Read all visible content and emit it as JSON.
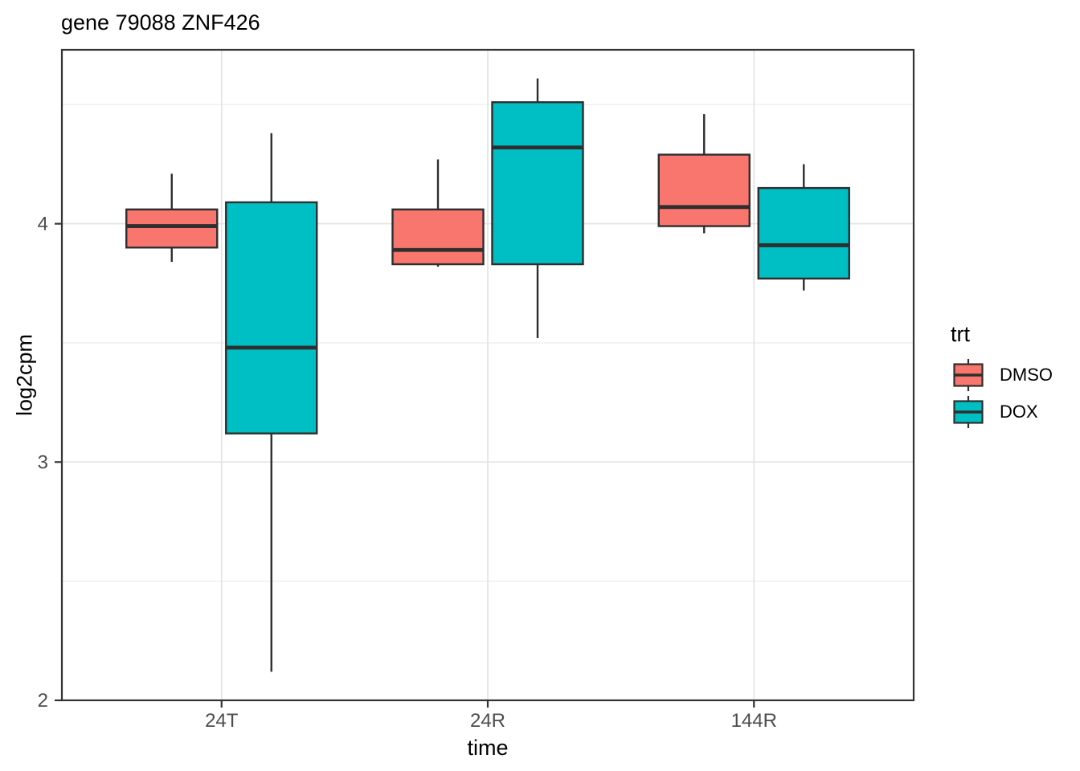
{
  "title": "gene 79088 ZNF426",
  "chart_data": {
    "type": "boxplot",
    "title": "gene 79088 ZNF426",
    "xlabel": "time",
    "ylabel": "log2cpm",
    "categories": [
      "24T",
      "24R",
      "144R"
    ],
    "y_ticks": [
      2,
      3,
      4
    ],
    "y_minor_ticks": [
      2.5,
      3.5,
      4.5
    ],
    "ylim": [
      2,
      4.73
    ],
    "grid": true,
    "legend_position": "right",
    "legend_title": "trt",
    "series": [
      {
        "name": "DMSO",
        "color": "#F8766D",
        "boxes": [
          {
            "category": "24T",
            "whisker_low": 3.84,
            "q1": 3.9,
            "median": 3.99,
            "q3": 4.06,
            "whisker_high": 4.21
          },
          {
            "category": "24R",
            "whisker_low": 3.82,
            "q1": 3.83,
            "median": 3.89,
            "q3": 4.06,
            "whisker_high": 4.27
          },
          {
            "category": "144R",
            "whisker_low": 3.96,
            "q1": 3.99,
            "median": 4.07,
            "q3": 4.29,
            "whisker_high": 4.46
          }
        ]
      },
      {
        "name": "DOX",
        "color": "#00BFC4",
        "boxes": [
          {
            "category": "24T",
            "whisker_low": 2.12,
            "q1": 3.12,
            "median": 3.48,
            "q3": 4.09,
            "whisker_high": 4.38
          },
          {
            "category": "24R",
            "whisker_low": 3.52,
            "q1": 3.83,
            "median": 4.32,
            "q3": 4.51,
            "whisker_high": 4.61
          },
          {
            "category": "144R",
            "whisker_low": 3.72,
            "q1": 3.77,
            "median": 3.91,
            "q3": 4.15,
            "whisker_high": 4.25
          }
        ]
      }
    ]
  },
  "colors": {
    "background": "#ffffff",
    "panel_border": "#333333",
    "grid_major": "#E2E2E2",
    "grid_minor": "#F0F0F0",
    "box_stroke": "#2E2E2E",
    "tick": "#333333",
    "axis_text": "#4D4D4D",
    "title_text": "#000000"
  }
}
